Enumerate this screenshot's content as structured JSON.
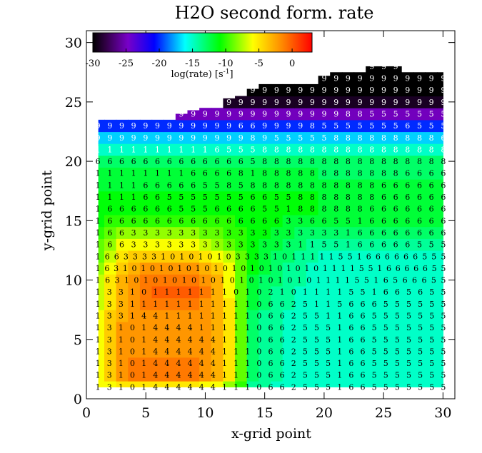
{
  "chart_data": {
    "type": "heatmap",
    "title": "H2O second form. rate",
    "xlabel": "x-grid point",
    "ylabel": "y-grid point",
    "xlim": [
      0,
      31
    ],
    "ylim": [
      0,
      31
    ],
    "xticks": [
      0,
      5,
      10,
      15,
      20,
      25,
      30
    ],
    "yticks": [
      0,
      5,
      10,
      15,
      20,
      25,
      30
    ],
    "grid": false,
    "colorbar": {
      "label": "log(rate) [s",
      "label_sup": "-1",
      "label_end": "]",
      "range": [
        -30,
        3
      ],
      "ticks": [
        -30,
        -25,
        -20,
        -15,
        -10,
        -5,
        0
      ],
      "tick_labels": [
        "-30",
        "-25",
        "-20",
        "-15",
        "-10",
        "-5",
        "0"
      ],
      "colormap": "rainbow (black-purple-blue-cyan-green-yellow-red)",
      "position": "top-left inset"
    },
    "top_boundary_y_by_column": [
      23.8,
      23.8,
      23.8,
      23.8,
      23.8,
      23.8,
      23.9,
      24.0,
      24.3,
      24.6,
      24.9,
      25.3,
      25.7,
      26.1,
      26.5,
      26.9,
      26.9,
      26.9,
      26.9,
      27.2,
      27.6,
      27.8,
      27.9,
      28.0,
      28.0,
      28.0,
      27.9,
      27.9,
      27.8,
      27.8
    ],
    "x": [
      1,
      30
    ],
    "y": [
      1,
      28
    ],
    "values_log_rate": [
      [
        -6,
        -6,
        -5,
        -5,
        -5,
        -5,
        -5,
        -5,
        -5,
        -6,
        -6,
        -8,
        -10,
        -14,
        -14,
        -15,
        -15,
        -15,
        -15,
        -15,
        -15,
        -15,
        -15,
        -15,
        -15,
        -15,
        -15,
        -15,
        -15,
        -15
      ],
      [
        -6,
        -4,
        -2,
        -1,
        -1,
        -1,
        -1,
        -1,
        -1,
        -2,
        -3,
        -5,
        -9,
        -13,
        -14,
        -14,
        -15,
        -15,
        -15,
        -15,
        -15,
        -15,
        -15,
        -15,
        -15,
        -15,
        -15,
        -15,
        -15,
        -15
      ],
      [
        -6,
        -4,
        -2,
        -1,
        -1,
        -1,
        -1,
        -1,
        -1,
        -2,
        -3,
        -5,
        -9,
        -13,
        -14,
        -14,
        -15,
        -15,
        -15,
        -15,
        -15,
        -15,
        -15,
        -15,
        -15,
        -15,
        -15,
        -15,
        -15,
        -15
      ],
      [
        -6,
        -4,
        -2,
        -2,
        -2,
        -2,
        -2,
        -2,
        -2,
        -2,
        -3,
        -5,
        -9,
        -13,
        -14,
        -14,
        -15,
        -15,
        -15,
        -15,
        -15,
        -15,
        -15,
        -15,
        -15,
        -15,
        -15,
        -15,
        -15,
        -15
      ],
      [
        -6,
        -4,
        -2,
        -2,
        -2,
        -2,
        -2,
        -2,
        -2,
        -2,
        -3,
        -5,
        -9,
        -13,
        -14,
        -14,
        -15,
        -15,
        -15,
        -15,
        -15,
        -15,
        -15,
        -15,
        -15,
        -15,
        -15,
        -15,
        -15,
        -15
      ],
      [
        -6,
        -4,
        -2,
        -2,
        -2,
        -2,
        -2,
        -2,
        -2,
        -2,
        -3,
        -5,
        -9,
        -13,
        -14,
        -14,
        -15,
        -15,
        -15,
        -15,
        -15,
        -15,
        -15,
        -15,
        -15,
        -15,
        -15,
        -15,
        -15,
        -15
      ],
      [
        -6,
        -4,
        -3,
        -2,
        -2,
        -2,
        -2,
        -2,
        -2,
        -2,
        -3,
        -5,
        -9,
        -13,
        -14,
        -14,
        -15,
        -15,
        -15,
        -15,
        -15,
        -15,
        -15,
        -15,
        -15,
        -15,
        -15,
        -15,
        -15,
        -15
      ],
      [
        -7,
        -5,
        -3,
        -2,
        -1,
        -1,
        -1,
        -1,
        -1,
        -2,
        -3,
        -5,
        -9,
        -12,
        -13,
        -14,
        -14,
        -15,
        -15,
        -15,
        -15,
        -15,
        -15,
        -15,
        -15,
        -15,
        -15,
        -15,
        -15,
        -15
      ],
      [
        -7,
        -5,
        -3,
        -2,
        -1,
        0,
        0,
        0,
        0,
        -1,
        -3,
        -6,
        -9,
        -12,
        -13,
        -14,
        -14,
        -15,
        -15,
        -15,
        -15,
        -15,
        -15,
        -15,
        -15,
        -15,
        -15,
        -15,
        -15,
        -15
      ],
      [
        -7,
        -5,
        -3,
        -2,
        -1,
        -1,
        -1,
        -1,
        -1,
        -2,
        -3,
        -6,
        -9,
        -12,
        -13,
        -13,
        -14,
        -14,
        -15,
        -15,
        -15,
        -15,
        -15,
        -15,
        -15,
        -15,
        -15,
        -15,
        -15,
        -15
      ],
      [
        -8,
        -6,
        -4,
        -3,
        -2,
        -2,
        -2,
        -2,
        -2,
        -3,
        -4,
        -6,
        -9,
        -11,
        -12,
        -13,
        -14,
        -14,
        -15,
        -15,
        -15,
        -15,
        -15,
        -15,
        -15,
        -15,
        -15,
        -15,
        -15,
        -15
      ],
      [
        -9,
        -7,
        -5,
        -4,
        -4,
        -4,
        -4,
        -4,
        -4,
        -5,
        -6,
        -7,
        -9,
        -11,
        -12,
        -13,
        -13,
        -14,
        -14,
        -15,
        -15,
        -15,
        -15,
        -15,
        -15,
        -15,
        -15,
        -15,
        -15,
        -15
      ],
      [
        -9,
        -8,
        -6,
        -6,
        -6,
        -6,
        -6,
        -6,
        -6,
        -7,
        -8,
        -9,
        -10,
        -11,
        -12,
        -12,
        -13,
        -13,
        -14,
        -14,
        -14,
        -14,
        -14,
        -14,
        -14,
        -14,
        -14,
        -14,
        -14,
        -14
      ],
      [
        -10,
        -9,
        -8,
        -8,
        -8,
        -8,
        -8,
        -8,
        -8,
        -9,
        -9,
        -10,
        -10,
        -11,
        -11,
        -12,
        -12,
        -13,
        -13,
        -13,
        -13,
        -13,
        -13,
        -13,
        -13,
        -13,
        -13,
        -13,
        -13,
        -13
      ],
      [
        -11,
        -10,
        -10,
        -10,
        -10,
        -10,
        -10,
        -10,
        -10,
        -10,
        -10,
        -10,
        -11,
        -11,
        -11,
        -11,
        -12,
        -12,
        -12,
        -12,
        -12,
        -12,
        -12,
        -12,
        -12,
        -12,
        -12,
        -12,
        -12,
        -12
      ],
      [
        -11,
        -11,
        -11,
        -11,
        -11,
        -11,
        -11,
        -11,
        -11,
        -11,
        -11,
        -11,
        -11,
        -11,
        -11,
        -11,
        -11,
        -11,
        -11,
        -12,
        -12,
        -12,
        -12,
        -12,
        -12,
        -12,
        -12,
        -12,
        -12,
        -12
      ],
      [
        -11,
        -11,
        -11,
        -11,
        -11,
        -11,
        -11,
        -11,
        -11,
        -11,
        -11,
        -11,
        -11,
        -11,
        -11,
        -11,
        -11,
        -11,
        -11,
        -12,
        -12,
        -12,
        -12,
        -12,
        -12,
        -12,
        -12,
        -12,
        -12,
        -12
      ],
      [
        -12,
        -12,
        -12,
        -12,
        -12,
        -12,
        -12,
        -12,
        -12,
        -12,
        -12,
        -12,
        -12,
        -12,
        -12,
        -12,
        -12,
        -12,
        -12,
        -12,
        -12,
        -12,
        -12,
        -12,
        -12,
        -12,
        -12,
        -12,
        -12,
        -12
      ],
      [
        -12,
        -12,
        -12,
        -12,
        -12,
        -12,
        -12,
        -12,
        -12,
        -12,
        -12,
        -12,
        -12,
        -12,
        -12,
        -12,
        -12,
        -12,
        -12,
        -13,
        -13,
        -13,
        -13,
        -13,
        -13,
        -13,
        -13,
        -13,
        -13,
        -13
      ],
      [
        -13,
        -13,
        -13,
        -13,
        -13,
        -13,
        -13,
        -13,
        -13,
        -13,
        -13,
        -13,
        -13,
        -13,
        -13,
        -13,
        -13,
        -13,
        -13,
        -13,
        -13,
        -13,
        -13,
        -13,
        -13,
        -13,
        -13,
        -13,
        -13,
        -13
      ],
      [
        -15,
        -15,
        -15,
        -15,
        -15,
        -15,
        -15,
        -15,
        -15,
        -15,
        -15,
        -15,
        -15,
        -15,
        -15,
        -15,
        -15,
        -15,
        -15,
        -15,
        -15,
        -15,
        -15,
        -15,
        -15,
        -15,
        -15,
        -15,
        -15,
        -15
      ],
      [
        -17,
        -17,
        -17,
        -17,
        -17,
        -17,
        -17,
        -17,
        -17,
        -17,
        -17,
        -17,
        -17,
        -17,
        -17,
        -17,
        -17,
        -17,
        -17,
        -17,
        -17,
        -17,
        -17,
        -17,
        -17,
        -17,
        -17,
        -17,
        -17,
        -17
      ],
      [
        -20,
        -20,
        -20,
        -20,
        -20,
        -20,
        -20,
        -20,
        -20,
        -20,
        -20,
        -20,
        -20,
        -20,
        -20,
        -20,
        -20,
        -20,
        -20,
        -20,
        -20,
        -20,
        -20,
        -20,
        -20,
        -20,
        -20,
        -20,
        -20,
        -20
      ],
      [
        -25,
        -25,
        -25,
        -25,
        -25,
        -25,
        -25,
        -25,
        -25,
        -25,
        -25,
        -25,
        -25,
        -25,
        -25,
        -25,
        -25,
        -25,
        -25,
        -25,
        -25,
        -25,
        -25,
        -25,
        -25,
        -25,
        -25,
        -25,
        -25,
        -25
      ],
      [
        -29,
        -29,
        -29,
        -29,
        -29,
        -29,
        -29,
        -29,
        -29,
        -29,
        -29,
        -29,
        -29,
        -29,
        -29,
        -29,
        -29,
        -29,
        -29,
        -29,
        -29,
        -29,
        -29,
        -29,
        -29,
        -29,
        -29,
        -29,
        -29,
        -29
      ],
      [
        -30,
        -30,
        -30,
        -30,
        -30,
        -30,
        -30,
        -30,
        -30,
        -30,
        -30,
        -30,
        -30,
        -30,
        -30,
        -30,
        -30,
        -30,
        -30,
        -30,
        -30,
        -30,
        -30,
        -30,
        -30,
        -30,
        -30,
        -30,
        -30,
        -30
      ],
      [
        -30,
        -30,
        -30,
        -30,
        -30,
        -30,
        -30,
        -30,
        -30,
        -30,
        -30,
        -30,
        -30,
        -30,
        -30,
        -30,
        -30,
        -30,
        -30,
        -30,
        -30,
        -30,
        -30,
        -30,
        -30,
        -30,
        -30,
        -30,
        -30,
        -30
      ],
      [
        -30,
        -30,
        -30,
        -30,
        -30,
        -30,
        -30,
        -30,
        -30,
        -30,
        -30,
        -30,
        -30,
        -30,
        -30,
        -30,
        -30,
        -30,
        -30,
        -30,
        -30,
        -30,
        -30,
        -30,
        -30,
        -30,
        -30,
        -30,
        -30,
        -30
      ]
    ],
    "cell_labels": [
      "1310144444411106625551665555555",
      "1310144444411106625551665555555",
      "1310144444411106625551665555555",
      "1310144444411106625551665555555",
      "1310144444411106625551665555555",
      "1310144441111106625551665555555",
      "1331441111111106625511665555555",
      "1331111111111106625115666555555",
      "1331011111110102101111551665655",
      "1631010101010101010101011115516566655",
      "163101010101010101010101011115516666655",
      "16633331010101033331011111551666666555",
      "166333333333333331155166666555",
      "166333333333333333333166666666",
      "166666666666666633665516666666",
      "166666655566665518888886666666",
      "111166555555566558888888666666",
      "111166666558588888888888666666",
      "111111116666818888888888886666",
      "666666666666658888888888888888",
      "111111111165558888888888888888",
      "999999999999989555558888888886",
      "999999999999669999855555556555",
      "999999999999999999999885555555",
      "999999999999999999999999999999",
      "999999999999999999999999999999",
      "999999999999999999999999999999",
      "999999999999999999999999999999"
    ]
  }
}
